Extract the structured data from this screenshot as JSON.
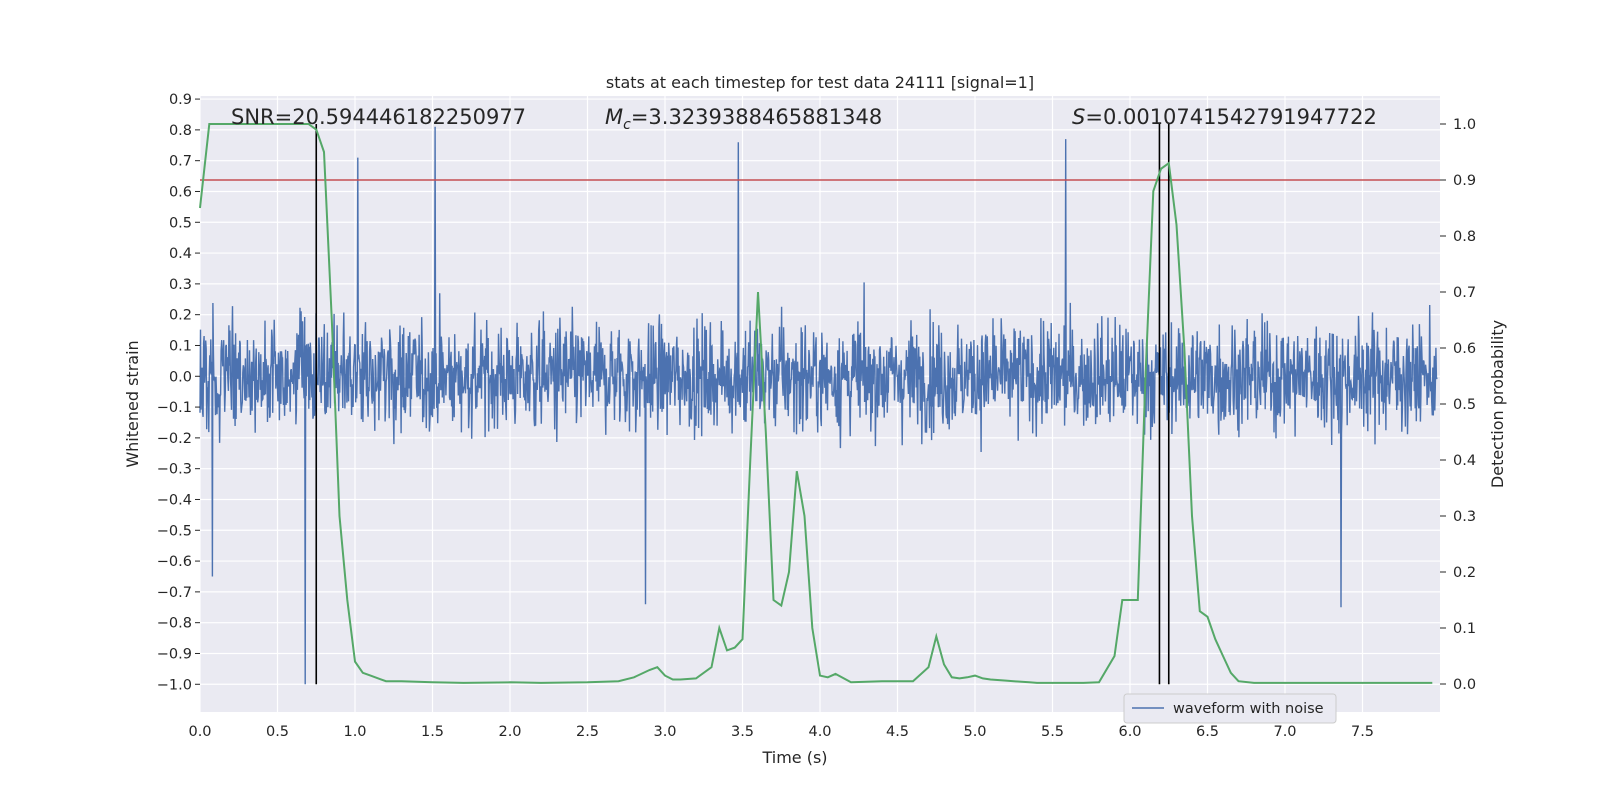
{
  "chart_data": {
    "type": "line",
    "title": "stats at each timestep for test data 24111 [signal=1]",
    "xlabel": "Time (s)",
    "ylabel_left": "Whitened strain",
    "ylabel_right": "Detection probability",
    "xlim": [
      0.0,
      8.0
    ],
    "ylim_left": [
      -1.09,
      0.91
    ],
    "ylim_right": [
      -0.05,
      1.05
    ],
    "x_ticks": [
      0.0,
      0.5,
      1.0,
      1.5,
      2.0,
      2.5,
      3.0,
      3.5,
      4.0,
      4.5,
      5.0,
      5.5,
      6.0,
      6.5,
      7.0,
      7.5
    ],
    "x_tick_labels": [
      "0.0",
      "0.5",
      "1.0",
      "1.5",
      "2.0",
      "2.5",
      "3.0",
      "3.5",
      "4.0",
      "4.5",
      "5.0",
      "5.5",
      "6.0",
      "6.5",
      "7.0",
      "7.5"
    ],
    "y_ticks_left": [
      0.9,
      0.8,
      0.7,
      0.6,
      0.5,
      0.4,
      0.3,
      0.2,
      0.1,
      0.0,
      -0.1,
      -0.2,
      -0.3,
      -0.4,
      -0.5,
      -0.6,
      -0.7,
      -0.8,
      -0.9,
      -1.0
    ],
    "y_tick_labels_left": [
      "0.9",
      "0.8",
      "0.7",
      "0.6",
      "0.5",
      "0.4",
      "0.3",
      "0.2",
      "0.1",
      "0.0",
      "−0.1",
      "−0.2",
      "−0.3",
      "−0.4",
      "−0.5",
      "−0.6",
      "−0.7",
      "−0.8",
      "−0.9",
      "−1.0"
    ],
    "y_ticks_right": [
      1.0,
      0.9,
      0.8,
      0.7,
      0.6,
      0.5,
      0.4,
      0.3,
      0.2,
      0.1,
      0.0
    ],
    "y_tick_labels_right": [
      "1.0",
      "0.9",
      "0.8",
      "0.7",
      "0.6",
      "0.5",
      "0.4",
      "0.3",
      "0.2",
      "0.1",
      "0.0"
    ],
    "annotations": {
      "snr": "SNR=20.594446182250977",
      "mc_symbol": "M",
      "mc_sub": "c",
      "mc_value": "=3.3239388465881348",
      "s_symbol": "S",
      "s_value": "=0.0010741542791947722"
    },
    "threshold_probability": 0.9,
    "vertical_markers_time": [
      0.75,
      6.19,
      6.25
    ],
    "legend": {
      "label": "waveform with noise",
      "placement": "lower-right"
    },
    "series": [
      {
        "name": "waveform with noise",
        "axis": "left",
        "color": "#4c72b0",
        "style": "dense noise, core amplitude about ±0.30, spikes to +0.81 and −1.0",
        "spikes": [
          {
            "x": 0.68,
            "y": -1.0
          },
          {
            "x": 1.52,
            "y": 0.81
          },
          {
            "x": 1.02,
            "y": 0.71
          },
          {
            "x": 3.48,
            "y": 0.76
          },
          {
            "x": 5.6,
            "y": 0.77
          },
          {
            "x": 0.08,
            "y": -0.65
          },
          {
            "x": 2.88,
            "y": -0.74
          },
          {
            "x": 7.38,
            "y": -0.75
          }
        ]
      },
      {
        "name": "detection probability",
        "axis": "right",
        "color": "#55a868",
        "x": [
          0.0,
          0.06,
          0.12,
          0.2,
          0.3,
          0.4,
          0.5,
          0.6,
          0.7,
          0.75,
          0.8,
          0.85,
          0.9,
          0.95,
          1.0,
          1.05,
          1.1,
          1.2,
          1.3,
          1.4,
          1.5,
          1.7,
          2.0,
          2.2,
          2.5,
          2.7,
          2.8,
          2.9,
          2.95,
          3.0,
          3.05,
          3.1,
          3.2,
          3.3,
          3.35,
          3.4,
          3.45,
          3.5,
          3.55,
          3.6,
          3.65,
          3.7,
          3.75,
          3.8,
          3.85,
          3.9,
          3.95,
          4.0,
          4.05,
          4.1,
          4.2,
          4.3,
          4.4,
          4.6,
          4.7,
          4.75,
          4.8,
          4.85,
          4.9,
          4.95,
          5.0,
          5.05,
          5.1,
          5.2,
          5.3,
          5.35,
          5.4,
          5.5,
          5.7,
          5.8,
          5.9,
          5.95,
          6.0,
          6.05,
          6.1,
          6.15,
          6.2,
          6.25,
          6.3,
          6.35,
          6.4,
          6.45,
          6.5,
          6.55,
          6.6,
          6.65,
          6.7,
          6.8,
          6.9,
          7.0,
          7.5,
          7.95
        ],
        "values": [
          0.85,
          1.0,
          1.0,
          1.0,
          1.0,
          1.0,
          1.0,
          1.0,
          1.0,
          0.99,
          0.95,
          0.65,
          0.3,
          0.15,
          0.04,
          0.02,
          0.015,
          0.005,
          0.005,
          0.004,
          0.003,
          0.002,
          0.003,
          0.002,
          0.003,
          0.005,
          0.012,
          0.025,
          0.03,
          0.015,
          0.008,
          0.008,
          0.01,
          0.03,
          0.1,
          0.06,
          0.065,
          0.08,
          0.4,
          0.7,
          0.45,
          0.15,
          0.14,
          0.2,
          0.38,
          0.3,
          0.1,
          0.015,
          0.012,
          0.018,
          0.003,
          0.004,
          0.005,
          0.005,
          0.03,
          0.085,
          0.035,
          0.012,
          0.01,
          0.012,
          0.015,
          0.01,
          0.008,
          0.006,
          0.004,
          0.003,
          0.002,
          0.002,
          0.002,
          0.003,
          0.05,
          0.15,
          0.15,
          0.15,
          0.55,
          0.88,
          0.92,
          0.93,
          0.82,
          0.6,
          0.3,
          0.13,
          0.12,
          0.08,
          0.05,
          0.02,
          0.005,
          0.002,
          0.002,
          0.002,
          0.002,
          0.002
        ]
      }
    ]
  }
}
